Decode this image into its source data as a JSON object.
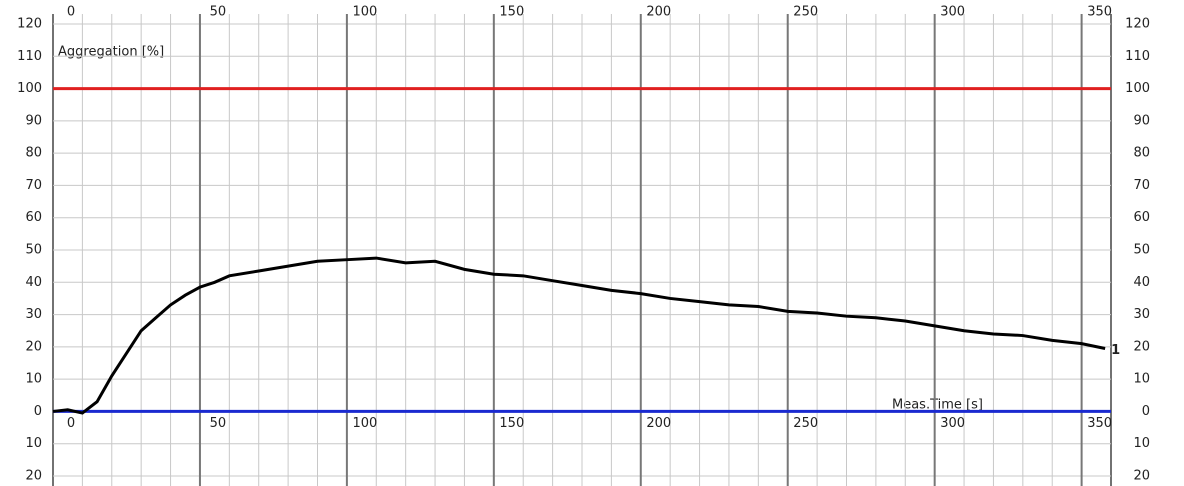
{
  "chart_data": {
    "type": "line",
    "y_label": "Aggregation [%]",
    "x_label": "Meas.Time [s]",
    "xlim": [
      0,
      360
    ],
    "ylim": [
      -20,
      120
    ],
    "xticks": [
      0,
      50,
      100,
      150,
      200,
      250,
      300,
      350
    ],
    "yticks": [
      {
        "value": -20,
        "label": "20"
      },
      {
        "value": -10,
        "label": "10"
      },
      0,
      10,
      20,
      30,
      40,
      50,
      60,
      70,
      80,
      90,
      100,
      110,
      120
    ],
    "grid": true,
    "reference_lines": [
      {
        "value": 100,
        "color": "#e02020"
      },
      {
        "value": 0,
        "color": "#1a2ad0"
      }
    ],
    "series": [
      {
        "name": "1",
        "color": "#000000",
        "x": [
          0,
          5,
          10,
          15,
          20,
          25,
          30,
          35,
          40,
          45,
          50,
          55,
          60,
          70,
          80,
          90,
          100,
          110,
          120,
          130,
          140,
          150,
          160,
          170,
          180,
          190,
          200,
          210,
          220,
          230,
          240,
          250,
          260,
          270,
          280,
          290,
          300,
          310,
          320,
          330,
          340,
          350,
          358
        ],
        "values": [
          0,
          0.5,
          -0.5,
          3,
          11,
          18,
          25,
          29,
          33,
          36,
          38.5,
          40,
          42,
          43.5,
          45,
          46.5,
          47,
          47.5,
          46,
          46.5,
          44,
          42.5,
          42,
          40.5,
          39,
          37.5,
          36.5,
          35,
          34,
          33,
          32.5,
          31,
          30.5,
          29.5,
          29,
          28,
          26.5,
          25,
          24,
          23.5,
          22,
          21,
          19.5
        ]
      }
    ]
  }
}
